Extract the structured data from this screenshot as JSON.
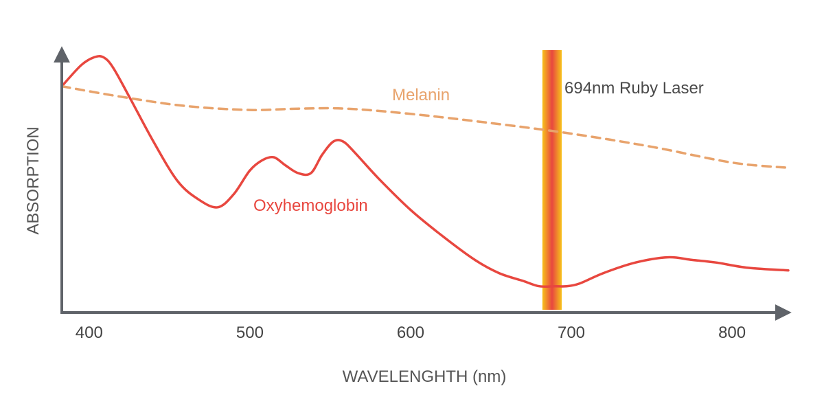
{
  "chart_data": {
    "type": "line",
    "title": "",
    "xlabel": "WAVELENGHTH (nm)",
    "ylabel": "ABSORPTION",
    "xlim": [
      383,
      835
    ],
    "ylim": [
      0,
      100
    ],
    "x_ticks": [
      400,
      500,
      600,
      700,
      800
    ],
    "y_ticks_shown": false,
    "grid": false,
    "legend": "inline labels",
    "colors": {
      "axis": "#5f6369",
      "oxyhemoglobin": "#e8473f",
      "melanin": "#e8a36c",
      "laser_outer": "#f7c21b",
      "laser_inner": "#e8473f"
    },
    "series": [
      {
        "name": "Oxyhemoglobin",
        "style": "solid",
        "x": [
          383,
          395,
          403,
          409,
          415,
          425,
          440,
          455,
          468,
          480,
          490,
          500,
          508,
          515,
          522,
          530,
          538,
          545,
          552,
          558,
          565,
          580,
          600,
          620,
          640,
          655,
          670,
          680,
          690,
          697,
          705,
          720,
          740,
          760,
          775,
          790,
          810,
          835
        ],
        "y": [
          86,
          94,
          97,
          97,
          93,
          82,
          65,
          50,
          43,
          40,
          45,
          54,
          58,
          59,
          56,
          53,
          53,
          60,
          65,
          65,
          61,
          51,
          39,
          29,
          20,
          15,
          12,
          10,
          10,
          10,
          11,
          15,
          19,
          21,
          20,
          19,
          17,
          16
        ]
      },
      {
        "name": "Melanin",
        "style": "dashed",
        "x": [
          383,
          420,
          460,
          500,
          530,
          560,
          600,
          650,
          700,
          750,
          800,
          835
        ],
        "y": [
          86,
          82,
          78.5,
          77,
          77.5,
          77.5,
          75.5,
          72,
          68,
          63,
          57,
          55
        ]
      }
    ],
    "annotations": [
      {
        "text": "694nm Ruby Laser",
        "type": "vertical-band",
        "x_start": 682,
        "x_end": 694
      }
    ]
  }
}
